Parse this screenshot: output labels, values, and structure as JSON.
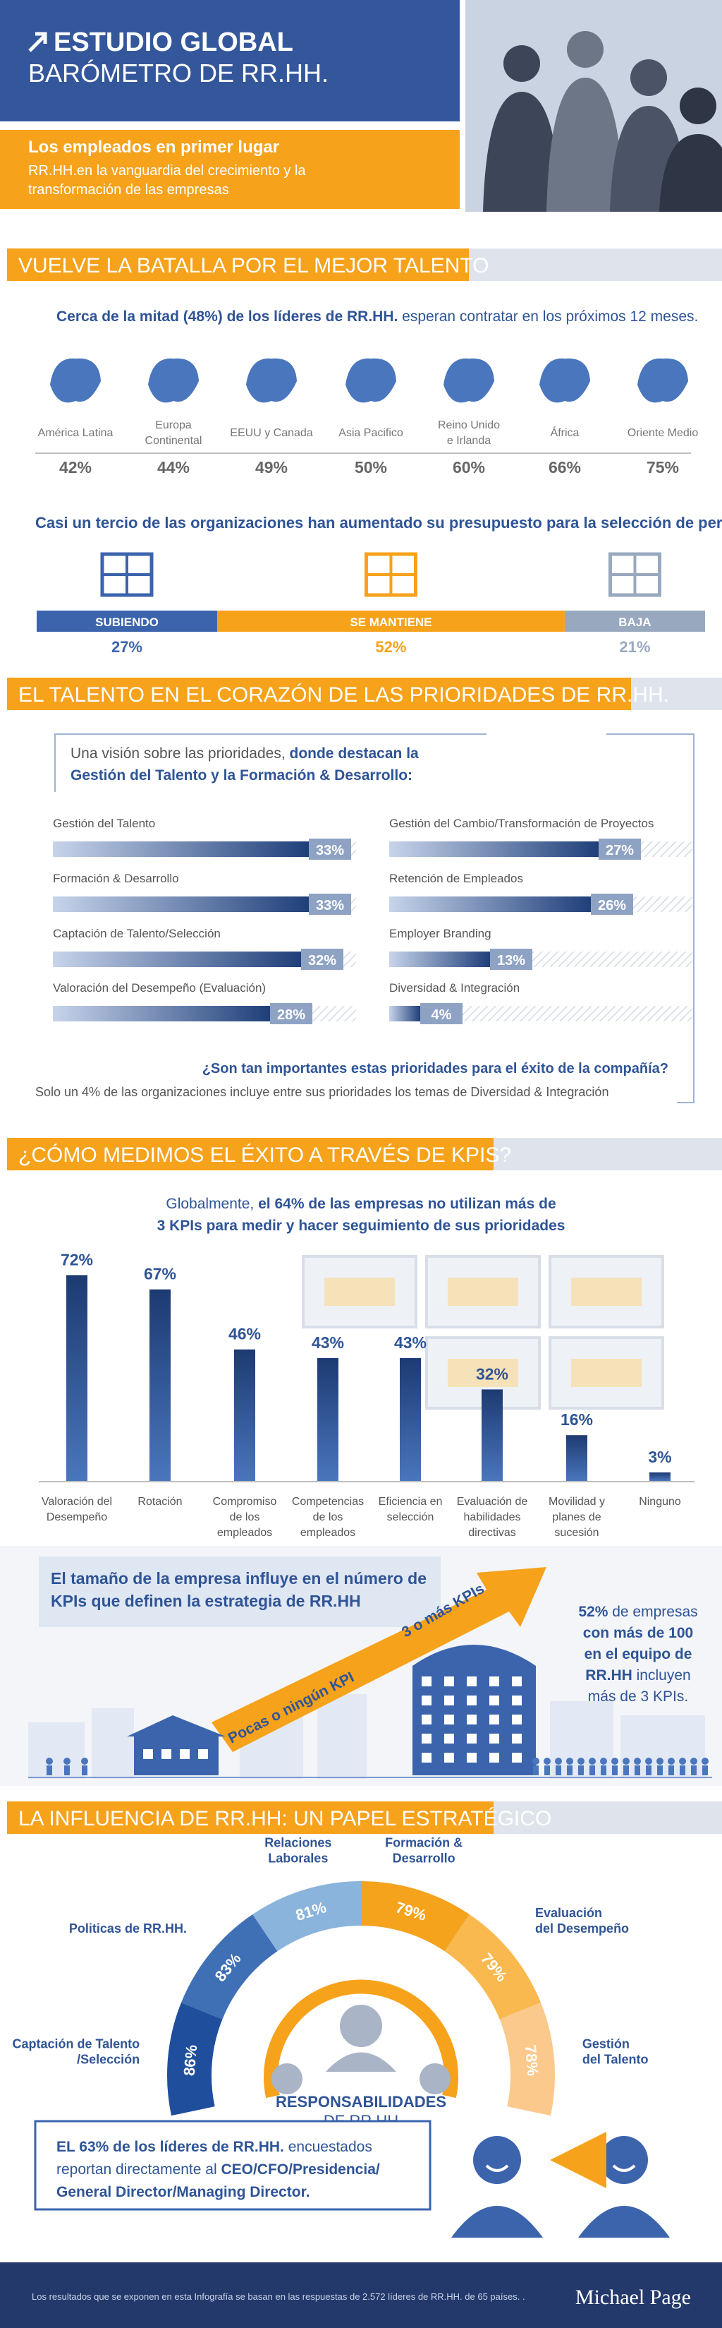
{
  "header": {
    "title": "ESTUDIO GLOBAL",
    "subtitle": "BARÓMETRO DE RR.HH.",
    "tagline": "Los empleados en primer lugar",
    "description": [
      "RR.HH.en la vanguardia del crecimiento y la",
      "transformación de las empresas"
    ]
  },
  "talent": {
    "heading": "VUELVE LA BATALLA POR EL MEJOR TALENTO",
    "intro": {
      "bold": "Cerca de la mitad (48%) de los líderes de RR.HH.",
      "plain": " esperan contratar en los próximos 12 meses."
    },
    "regions": [
      {
        "name": [
          "América Latina"
        ],
        "label": "42%"
      },
      {
        "name": [
          "Europa",
          "Continental"
        ],
        "label": "44%"
      },
      {
        "name": [
          "EEUU y Canada"
        ],
        "label": "49%"
      },
      {
        "name": [
          "Asia Pacifico"
        ],
        "label": "50%"
      },
      {
        "name": [
          "Reino Unido",
          "e Irlanda"
        ],
        "label": "60%"
      },
      {
        "name": [
          "África"
        ],
        "label": "66%"
      },
      {
        "name": [
          "Oriente Medio"
        ],
        "label": "75%"
      }
    ],
    "budget_heading": "Casi un tercio de las organizaciones han aumentado su presupuesto para la selección de personal:",
    "budget": [
      {
        "name": "SUBIENDO",
        "value": 27,
        "label": "27%",
        "color": "#3b64ad"
      },
      {
        "name": "SE MANTIENE",
        "value": 52,
        "label": "52%",
        "color": "#f7a21b"
      },
      {
        "name": "BAJA",
        "value": 21,
        "label": "21%",
        "color": "#98a9bf"
      }
    ]
  },
  "priorities": {
    "heading": "EL TALENTO EN EL CORAZÓN DE LAS PRIORIDADES DE RR.HH.",
    "intro": [
      {
        "plain": "Una visión sobre las prioridades, ",
        "bold": "donde destacan la"
      },
      {
        "bold": "Gestión del Talento y la Formación & Desarrollo:"
      }
    ],
    "items": [
      {
        "name": "Gestión del Talento",
        "value": 33,
        "label": "33%"
      },
      {
        "name": "Formación & Desarrollo",
        "value": 33,
        "label": "33%"
      },
      {
        "name": "Captación de Talento/Selección",
        "value": 32,
        "label": "32%"
      },
      {
        "name": "Valoración del Desempeño (Evaluación)",
        "value": 28,
        "label": "28%"
      },
      {
        "name": "Gestión del Cambio/Transformación de Proyectos",
        "value": 27,
        "label": "27%"
      },
      {
        "name": "Retención de Empleados",
        "value": 26,
        "label": "26%"
      },
      {
        "name": "Employer Branding",
        "value": 13,
        "label": "13%"
      },
      {
        "name": "Diversidad & Integración",
        "value": 4,
        "label": "4%"
      }
    ],
    "question": "¿Son tan importantes estas prioridades para el éxito de la compañía?",
    "answer": "Solo un 4% de las organizaciones incluye entre sus prioridades los temas de Diversidad & Integración"
  },
  "kpis": {
    "heading": "¿CÓMO MEDIMOS EL ÉXITO A TRAVÉS DE KPIS?",
    "intro": [
      {
        "plain": "Globalmente, ",
        "bold": "el 64% de las empresas no utilizan más de"
      },
      {
        "bold": "3 KPIs para medir y hacer seguimiento de sus prioridades"
      }
    ],
    "bars": [
      {
        "name": [
          "Valoración del",
          "Desempeño"
        ],
        "value": 72,
        "label": "72%"
      },
      {
        "name": [
          "Rotación"
        ],
        "value": 67,
        "label": "67%"
      },
      {
        "name": [
          "Compromiso",
          "de los",
          "empleados"
        ],
        "value": 46,
        "label": "46%"
      },
      {
        "name": [
          "Competencias",
          "de los",
          "empleados"
        ],
        "value": 43,
        "label": "43%"
      },
      {
        "name": [
          "Eficiencia en",
          "selección"
        ],
        "value": 43,
        "label": "43%"
      },
      {
        "name": [
          "Evaluación de",
          "habilidades",
          "directivas"
        ],
        "value": 32,
        "label": "32%"
      },
      {
        "name": [
          "Movilidad y",
          "planes de",
          "sucesión"
        ],
        "value": 16,
        "label": "16%"
      },
      {
        "name": [
          "Ninguno"
        ],
        "value": 3,
        "label": "3%"
      }
    ],
    "size_text": [
      "El tamaño de la empresa influye en el número de",
      "KPIs que definen la estrategia de RR.HH"
    ],
    "arrow_low": "Pocas o ningún KPI",
    "arrow_high": "3 o más KPIs",
    "side_text": [
      {
        "bold": "52%",
        "plain": " de empresas"
      },
      {
        "bold": "con más de 100"
      },
      {
        "bold": "en el equipo de"
      },
      {
        "bold": "RR.HH",
        "plain": "  incluyen"
      },
      {
        "plain": "más de 3 KPIs."
      }
    ]
  },
  "influence": {
    "heading": "LA INFLUENCIA DE RR.HH: UN PAPEL ESTRATÉGICO",
    "areas": [
      {
        "name": [
          "Captación de Talento",
          "/Selección"
        ],
        "label": "86%",
        "color": "#1f4e9c"
      },
      {
        "name": [
          "Politicas de RR.HH."
        ],
        "label": "83%",
        "color": "#3f6fb5"
      },
      {
        "name": [
          "Relaciones",
          "Laborales"
        ],
        "label": "81%",
        "color": "#8ab4dc"
      },
      {
        "name": [
          "Formación &",
          "Desarrollo"
        ],
        "label": "79%",
        "color": "#f5a21d"
      },
      {
        "name": [
          "Evaluación",
          "del Desempeño"
        ],
        "label": "79%",
        "color": "#f9b94f"
      },
      {
        "name": [
          "Gestión",
          "del Talento"
        ],
        "label": "78%",
        "color": "#fbc98b"
      }
    ],
    "center": [
      "RESPONSABILIDADES",
      "DE RR.HH"
    ],
    "box": [
      {
        "bold": "EL 63% de los líderes de RR.HH.",
        "plain": " encuestados"
      },
      {
        "plain": "reportan directamente al ",
        "bold": "CEO/CFO/Presidencia/"
      },
      {
        "bold": "General Director/Managing Director."
      }
    ]
  },
  "footer": {
    "note": "Los resultados que se exponen en esta Infografía se basan en las respuestas de 2.572 líderes de RR.HH. de 65 países. .",
    "logo": "Michael Page"
  }
}
